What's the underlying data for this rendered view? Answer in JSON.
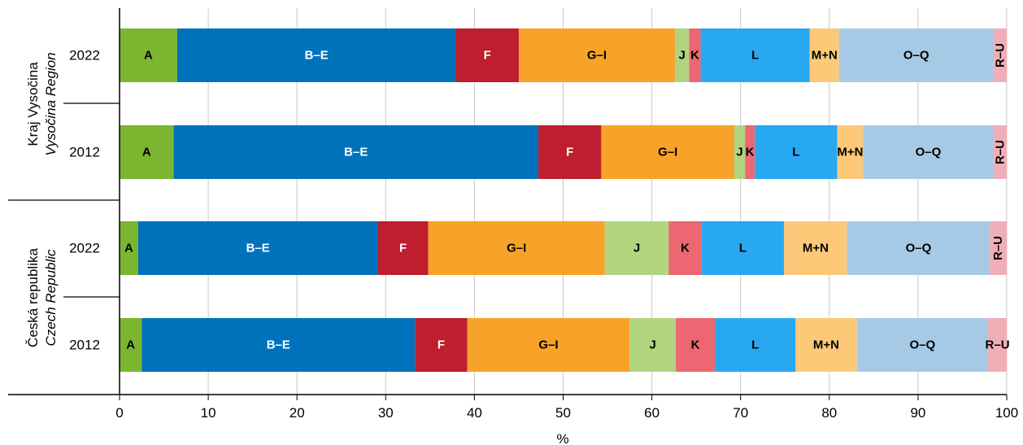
{
  "chart_data": {
    "type": "bar",
    "orientation": "horizontal",
    "stacked": true,
    "xlabel": "%",
    "xlim": [
      0,
      100
    ],
    "xticks": [
      "0",
      "10",
      "20",
      "30",
      "40",
      "50",
      "60",
      "70",
      "80",
      "90",
      "100"
    ],
    "grid": "vertical",
    "legend": "none",
    "segment_labels": [
      "A",
      "B–E",
      "F",
      "G–I",
      "J",
      "K",
      "L",
      "M+N",
      "O–Q",
      "R–U"
    ],
    "groups": [
      {
        "name": "Kraj Vysočina",
        "name_en": "Vysočina Region"
      },
      {
        "name": "Česká republika",
        "name_en": "Czech Republic"
      }
    ],
    "rows": [
      {
        "group": 0,
        "year": "2022",
        "values": [
          6.5,
          31.4,
          7.1,
          17.6,
          1.6,
          1.3,
          12.3,
          3.3,
          17.4,
          1.5
        ]
      },
      {
        "group": 0,
        "year": "2012",
        "values": [
          6.1,
          41.1,
          7.1,
          15.0,
          1.2,
          1.1,
          9.3,
          2.9,
          14.7,
          1.5
        ]
      },
      {
        "group": 1,
        "year": "2022",
        "values": [
          2.1,
          27.0,
          5.7,
          19.9,
          7.2,
          3.7,
          9.3,
          7.1,
          16.1,
          1.9
        ]
      },
      {
        "group": 1,
        "year": "2012",
        "values": [
          2.5,
          30.8,
          5.9,
          18.3,
          5.2,
          4.4,
          9.1,
          6.9,
          14.8,
          2.1
        ]
      }
    ],
    "colors": [
      "#7ab630",
      "#0072bc",
      "#be1e2d",
      "#f7a329",
      "#b1d57f",
      "#ec6771",
      "#29a8f2",
      "#fbc978",
      "#a6cae6",
      "#f0aeb6"
    ],
    "label_colors": [
      "#000000",
      "#ffffff",
      "#ffffff",
      "#000000",
      "#000000",
      "#000000",
      "#000000",
      "#000000",
      "#000000",
      "#000000"
    ]
  }
}
